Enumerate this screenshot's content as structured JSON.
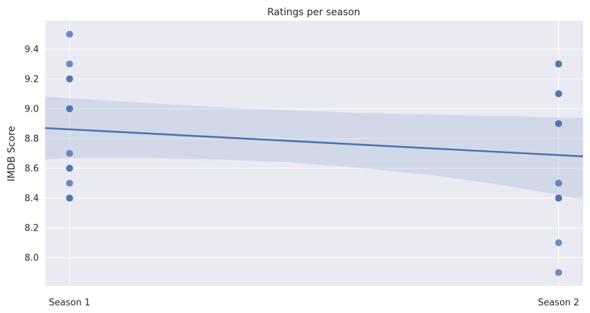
{
  "chart_data": {
    "type": "scatter",
    "title": "Ratings per season",
    "xlabel": "",
    "ylabel": "IMDB Score",
    "x_categories": [
      "Season 1",
      "Season 2"
    ],
    "xlim": [
      -0.05,
      1.05
    ],
    "ylim": [
      7.81,
      9.59
    ],
    "yticks": [
      "8.0",
      "8.2",
      "8.4",
      "8.6",
      "8.8",
      "9.0",
      "9.2",
      "9.4"
    ],
    "grid": true,
    "series": [
      {
        "x": [
          0,
          0,
          0,
          0,
          0,
          0,
          0,
          0,
          0,
          0,
          0,
          0,
          1,
          1,
          1,
          1,
          1,
          1,
          1,
          1,
          1,
          1,
          1,
          1
        ],
        "y": [
          9.5,
          9.3,
          9.2,
          9.2,
          9.0,
          9.0,
          8.7,
          8.6,
          8.6,
          8.5,
          8.4,
          8.4,
          9.3,
          9.3,
          9.1,
          9.1,
          8.9,
          8.9,
          8.5,
          8.4,
          8.4,
          8.4,
          8.1,
          7.9
        ]
      }
    ],
    "regression": {
      "x": [
        -0.05,
        1.05
      ],
      "y": [
        8.87,
        8.68
      ],
      "ci_x": [
        -0.05,
        0.0,
        0.15,
        0.3,
        0.45,
        0.6,
        0.75,
        0.9,
        1.0,
        1.05
      ],
      "ci_upper": [
        9.08,
        9.07,
        9.04,
        9.01,
        8.99,
        8.97,
        8.96,
        8.95,
        8.94,
        8.94
      ],
      "ci_lower": [
        8.66,
        8.67,
        8.67,
        8.66,
        8.64,
        8.6,
        8.55,
        8.48,
        8.42,
        8.39
      ]
    },
    "colors": {
      "point": "#4c72b0",
      "line": "#4c72b0",
      "band": "#4c72b0",
      "background": "#eaeaf2",
      "grid": "#ffffff"
    }
  }
}
